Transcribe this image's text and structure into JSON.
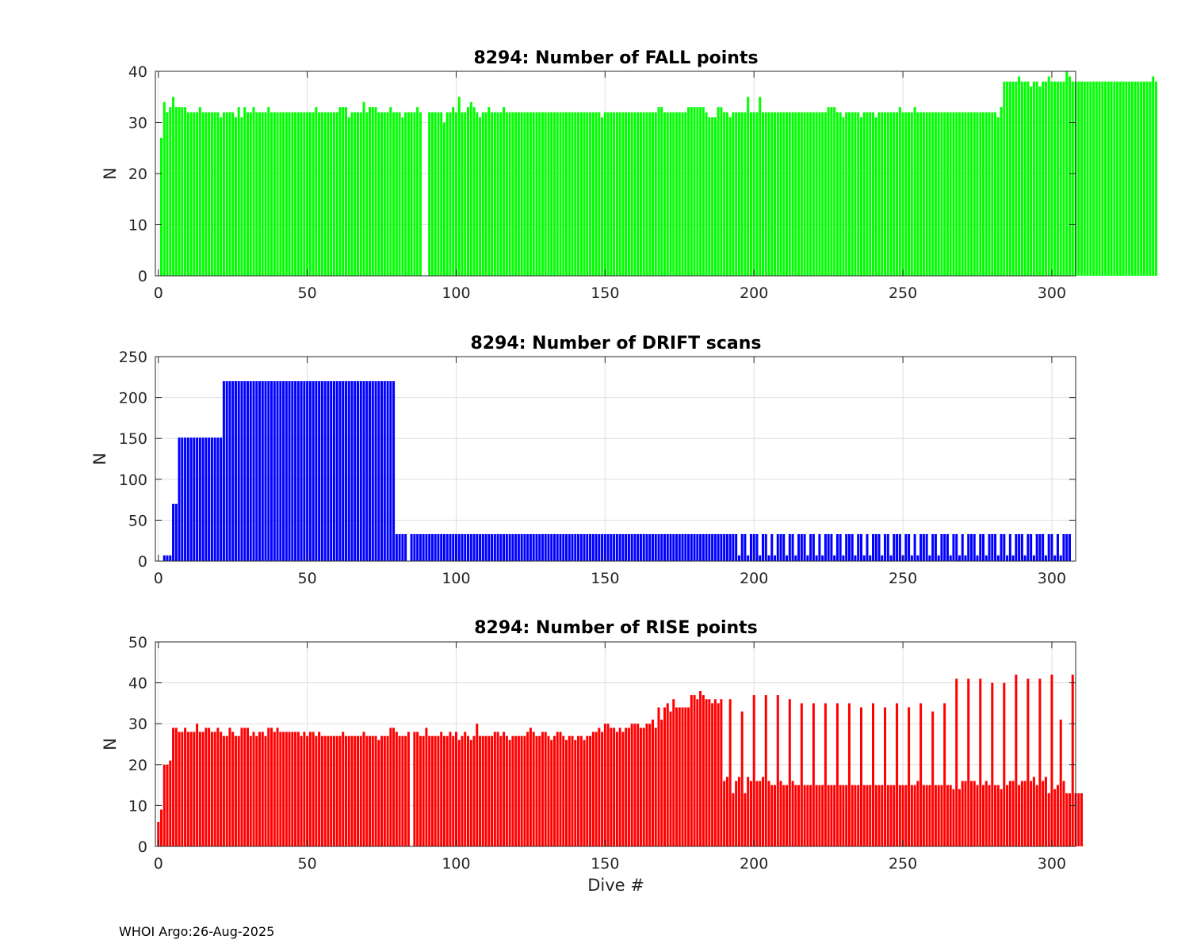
{
  "footer": "WHOI Argo:26-Aug-2025",
  "chart_data": [
    {
      "type": "bar",
      "title": "8294: Number of FALL points",
      "xlabel": "",
      "ylabel": "N",
      "xlim": [
        -1,
        308
      ],
      "ylim": [
        0,
        40
      ],
      "xticks": [
        0,
        50,
        100,
        150,
        200,
        250,
        300
      ],
      "yticks": [
        0,
        10,
        20,
        30,
        40
      ],
      "grid": true,
      "color": "#00ff00",
      "x_start": 0,
      "values": [
        0,
        27,
        34,
        32,
        33,
        35,
        33,
        33,
        33,
        33,
        32,
        32,
        32,
        32,
        33,
        32,
        32,
        32,
        32,
        32,
        32,
        31,
        32,
        32,
        32,
        32,
        31,
        33,
        31,
        33,
        32,
        32,
        33,
        32,
        32,
        32,
        32,
        33,
        32,
        32,
        32,
        32,
        32,
        32,
        32,
        32,
        32,
        32,
        32,
        32,
        32,
        32,
        32,
        33,
        32,
        32,
        32,
        32,
        32,
        32,
        32,
        33,
        33,
        33,
        31,
        32,
        32,
        32,
        32,
        34,
        32,
        33,
        33,
        33,
        32,
        32,
        32,
        32,
        33,
        32,
        32,
        32,
        31,
        32,
        32,
        32,
        32,
        33,
        32,
        0,
        0,
        32,
        32,
        32,
        32,
        32,
        30,
        32,
        32,
        33,
        32,
        35,
        32,
        32,
        33,
        34,
        33,
        32,
        31,
        32,
        32,
        33,
        32,
        32,
        32,
        32,
        33,
        32,
        32,
        32,
        32,
        32,
        32,
        32,
        32,
        32,
        32,
        32,
        32,
        32,
        32,
        32,
        32,
        32,
        32,
        32,
        32,
        32,
        32,
        32,
        32,
        32,
        32,
        32,
        32,
        32,
        32,
        32,
        32,
        31,
        32,
        32,
        32,
        32,
        32,
        32,
        32,
        32,
        32,
        32,
        32,
        32,
        32,
        32,
        32,
        32,
        32,
        32,
        33,
        33,
        32,
        32,
        32,
        32,
        32,
        32,
        32,
        32,
        33,
        33,
        33,
        33,
        33,
        33,
        32,
        31,
        31,
        31,
        33,
        33,
        32,
        32,
        31,
        32,
        32,
        32,
        32,
        32,
        35,
        32,
        32,
        32,
        35,
        32,
        32,
        32,
        32,
        32,
        32,
        32,
        32,
        32,
        32,
        32,
        32,
        32,
        32,
        32,
        32,
        32,
        32,
        32,
        32,
        32,
        32,
        33,
        33,
        33,
        32,
        32,
        31,
        32,
        32,
        32,
        32,
        32,
        31,
        32,
        32,
        32,
        32,
        31,
        32,
        32,
        32,
        32,
        32,
        32,
        32,
        33,
        32,
        32,
        32,
        32,
        33,
        32,
        32,
        32,
        32,
        32,
        32,
        32,
        32,
        32,
        32,
        32,
        32,
        32,
        32,
        32,
        32,
        32,
        32,
        32,
        32,
        32,
        32,
        32,
        32,
        32,
        32,
        32,
        31,
        33,
        38,
        38,
        38,
        38,
        38,
        39,
        38,
        38,
        38,
        37,
        38,
        38,
        37,
        38,
        38,
        39,
        38,
        38,
        38,
        38,
        38,
        40,
        39,
        38,
        38,
        38,
        38,
        38,
        38,
        38,
        38,
        38,
        38,
        38,
        38,
        38,
        38,
        38,
        38,
        38,
        38,
        38,
        38,
        38,
        38,
        38,
        38,
        38,
        38,
        38,
        39,
        38
      ]
    },
    {
      "type": "bar",
      "title": "8294: Number of DRIFT scans",
      "xlabel": "",
      "ylabel": "N",
      "xlim": [
        -1,
        308
      ],
      "ylim": [
        0,
        250
      ],
      "xticks": [
        0,
        50,
        100,
        150,
        200,
        250,
        300
      ],
      "yticks": [
        0,
        50,
        100,
        150,
        200,
        250
      ],
      "grid": true,
      "color": "#0000ff",
      "x_start": 0,
      "values": [
        0,
        0,
        7,
        7,
        7,
        70,
        70,
        151,
        151,
        151,
        151,
        151,
        151,
        151,
        151,
        151,
        151,
        151,
        151,
        151,
        151,
        151,
        220,
        220,
        220,
        220,
        220,
        220,
        220,
        220,
        220,
        220,
        220,
        220,
        220,
        220,
        220,
        220,
        220,
        220,
        220,
        220,
        220,
        220,
        220,
        220,
        220,
        220,
        220,
        220,
        220,
        220,
        220,
        220,
        220,
        220,
        220,
        220,
        220,
        220,
        220,
        220,
        220,
        220,
        220,
        220,
        220,
        220,
        220,
        220,
        220,
        220,
        220,
        220,
        220,
        220,
        220,
        220,
        220,
        220,
        33,
        33,
        33,
        33,
        0,
        33,
        33,
        33,
        33,
        33,
        33,
        33,
        33,
        33,
        33,
        33,
        33,
        33,
        33,
        33,
        33,
        33,
        33,
        33,
        33,
        33,
        33,
        33,
        33,
        33,
        33,
        33,
        33,
        33,
        33,
        33,
        33,
        33,
        33,
        33,
        33,
        33,
        33,
        33,
        33,
        33,
        33,
        33,
        33,
        33,
        33,
        33,
        33,
        33,
        33,
        33,
        33,
        33,
        33,
        33,
        33,
        33,
        33,
        33,
        33,
        33,
        33,
        33,
        33,
        33,
        33,
        33,
        33,
        33,
        33,
        33,
        33,
        33,
        33,
        33,
        33,
        33,
        33,
        33,
        33,
        33,
        33,
        33,
        33,
        33,
        33,
        33,
        33,
        33,
        33,
        33,
        33,
        33,
        33,
        33,
        33,
        33,
        33,
        33,
        33,
        33,
        33,
        33,
        33,
        33,
        33,
        33,
        33,
        33,
        33,
        7,
        33,
        33,
        7,
        33,
        33,
        33,
        7,
        33,
        33,
        7,
        33,
        7,
        33,
        33,
        33,
        7,
        33,
        33,
        7,
        33,
        33,
        33,
        7,
        33,
        33,
        7,
        33,
        7,
        33,
        33,
        33,
        7,
        33,
        33,
        7,
        33,
        33,
        33,
        7,
        33,
        33,
        7,
        33,
        7,
        33,
        33,
        33,
        7,
        33,
        33,
        7,
        33,
        33,
        33,
        7,
        33,
        33,
        7,
        33,
        7,
        33,
        33,
        33,
        7,
        33,
        33,
        7,
        33,
        33,
        33,
        7,
        33,
        33,
        7,
        33,
        7,
        33,
        33,
        33,
        7,
        33,
        33,
        7,
        33,
        33,
        33,
        7,
        33,
        33,
        7,
        33,
        7,
        33,
        33,
        33,
        7,
        33,
        33,
        7,
        33,
        33,
        33,
        7,
        33,
        33,
        7,
        33,
        7,
        33,
        33,
        33
      ]
    },
    {
      "type": "bar",
      "title": "8294: Number of RISE points",
      "xlabel": "Dive #",
      "ylabel": "N",
      "xlim": [
        -1,
        308
      ],
      "ylim": [
        0,
        50
      ],
      "xticks": [
        0,
        50,
        100,
        150,
        200,
        250,
        300
      ],
      "yticks": [
        0,
        10,
        20,
        30,
        40,
        50
      ],
      "grid": true,
      "color": "#ff0000",
      "x_start": 0,
      "values": [
        6,
        9,
        20,
        20,
        21,
        29,
        29,
        28,
        28,
        29,
        28,
        28,
        28,
        30,
        28,
        28,
        29,
        29,
        28,
        28,
        29,
        28,
        27,
        27,
        29,
        28,
        27,
        27,
        29,
        29,
        29,
        27,
        28,
        27,
        28,
        28,
        27,
        29,
        29,
        28,
        29,
        28,
        28,
        28,
        28,
        28,
        28,
        28,
        27,
        28,
        27,
        28,
        28,
        27,
        28,
        27,
        27,
        27,
        27,
        27,
        27,
        27,
        28,
        27,
        27,
        27,
        27,
        27,
        27,
        28,
        27,
        27,
        27,
        27,
        26,
        27,
        27,
        27,
        29,
        29,
        28,
        27,
        27,
        27,
        28,
        0,
        28,
        28,
        27,
        27,
        29,
        27,
        27,
        27,
        27,
        28,
        27,
        27,
        28,
        27,
        28,
        26,
        27,
        28,
        27,
        26,
        27,
        30,
        27,
        27,
        27,
        27,
        27,
        28,
        28,
        27,
        28,
        27,
        26,
        27,
        27,
        27,
        27,
        27,
        28,
        29,
        28,
        27,
        27,
        28,
        28,
        27,
        26,
        27,
        28,
        28,
        27,
        26,
        27,
        27,
        26,
        27,
        27,
        26,
        27,
        27,
        28,
        28,
        29,
        28,
        30,
        30,
        29,
        29,
        28,
        29,
        28,
        29,
        29,
        30,
        30,
        30,
        29,
        29,
        30,
        30,
        31,
        29,
        34,
        31,
        34,
        35,
        33,
        36,
        34,
        34,
        34,
        34,
        34,
        37,
        37,
        36,
        38,
        37,
        36,
        36,
        35,
        36,
        35,
        36,
        16,
        17,
        36,
        13,
        16,
        17,
        33,
        13,
        17,
        16,
        37,
        16,
        16,
        17,
        37,
        16,
        15,
        15,
        37,
        16,
        15,
        15,
        36,
        16,
        15,
        15,
        35,
        15,
        15,
        15,
        35,
        15,
        15,
        15,
        35,
        15,
        15,
        15,
        35,
        15,
        15,
        15,
        35,
        15,
        15,
        15,
        34,
        15,
        15,
        15,
        35,
        15,
        15,
        15,
        34,
        15,
        15,
        15,
        35,
        15,
        15,
        15,
        34,
        15,
        15,
        16,
        35,
        15,
        15,
        15,
        33,
        15,
        15,
        15,
        35,
        15,
        15,
        14,
        41,
        14,
        16,
        16,
        41,
        16,
        16,
        15,
        41,
        15,
        16,
        15,
        40,
        15,
        15,
        14,
        40,
        15,
        16,
        16,
        42,
        15,
        16,
        16,
        41,
        16,
        17,
        15,
        41,
        16,
        17,
        13,
        42,
        14,
        15,
        31,
        16,
        13,
        13,
        42,
        13,
        13,
        13
      ]
    }
  ]
}
